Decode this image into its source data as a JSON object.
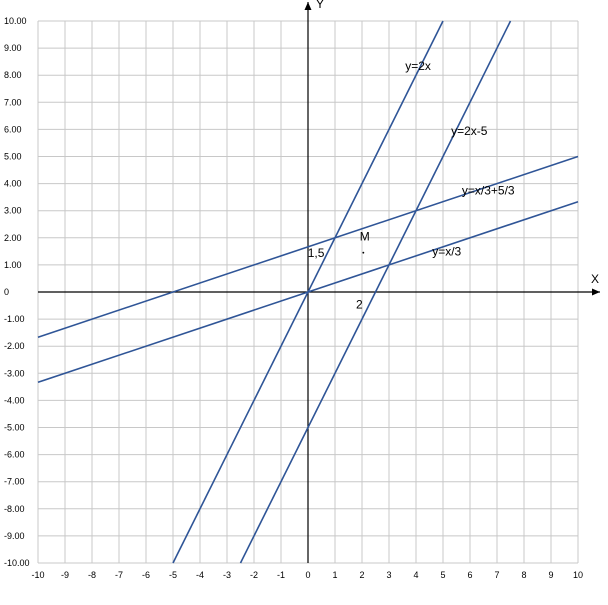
{
  "chart_data": {
    "type": "line",
    "title": "",
    "xlabel": "X",
    "ylabel": "Y",
    "xlim": [
      -10,
      10
    ],
    "ylim": [
      -10,
      10
    ],
    "grid": true,
    "x_ticks": [
      -10,
      -9,
      -8,
      -7,
      -6,
      -5,
      -4,
      -3,
      -2,
      -1,
      0,
      1,
      2,
      3,
      4,
      5,
      6,
      7,
      8,
      9,
      10
    ],
    "x_tick_labels": [
      "-10",
      "-9",
      "-8",
      "-7",
      "-6",
      "-5",
      "-4",
      "-3",
      "-2",
      "-1",
      "0",
      "1",
      "2",
      "3",
      "4",
      "5",
      "6",
      "7",
      "8",
      "9",
      "10"
    ],
    "y_ticks": [
      10,
      9,
      8,
      7,
      6,
      5,
      4,
      3,
      2,
      1,
      0,
      -1,
      -2,
      -3,
      -4,
      -5,
      -6,
      -7,
      -8,
      -9,
      -10
    ],
    "y_tick_labels": [
      "10.00",
      "9.00",
      "8.00",
      "7.00",
      "6.00",
      "5.00",
      "4.00",
      "3.00",
      "2.00",
      "1.00",
      "0",
      "-1.00",
      "-2.00",
      "-3.00",
      "-4.00",
      "-5.00",
      "-6.00",
      "-7.00",
      "-8.00",
      "-9.00",
      "-10.00"
    ],
    "line_color": "#2f5597",
    "series": [
      {
        "name": "y=2x",
        "x": [
          -5,
          5
        ],
        "y": [
          -10,
          10
        ]
      },
      {
        "name": "y=2x-5",
        "x": [
          -2.5,
          7.5
        ],
        "y": [
          -10,
          10
        ]
      },
      {
        "name": "y=x/3+5/3",
        "x": [
          -10,
          10
        ],
        "y": [
          -1.667,
          5
        ]
      },
      {
        "name": "y=x/3",
        "x": [
          -10,
          10
        ],
        "y": [
          -3.333,
          3.333
        ]
      }
    ],
    "annotations": [
      {
        "text": "1,5",
        "x": 0.3,
        "y": 1.3
      },
      {
        "text": "M",
        "x": 2.1,
        "y": 1.9
      },
      {
        "text": "2",
        "x": 1.9,
        "y": -0.6
      }
    ]
  }
}
